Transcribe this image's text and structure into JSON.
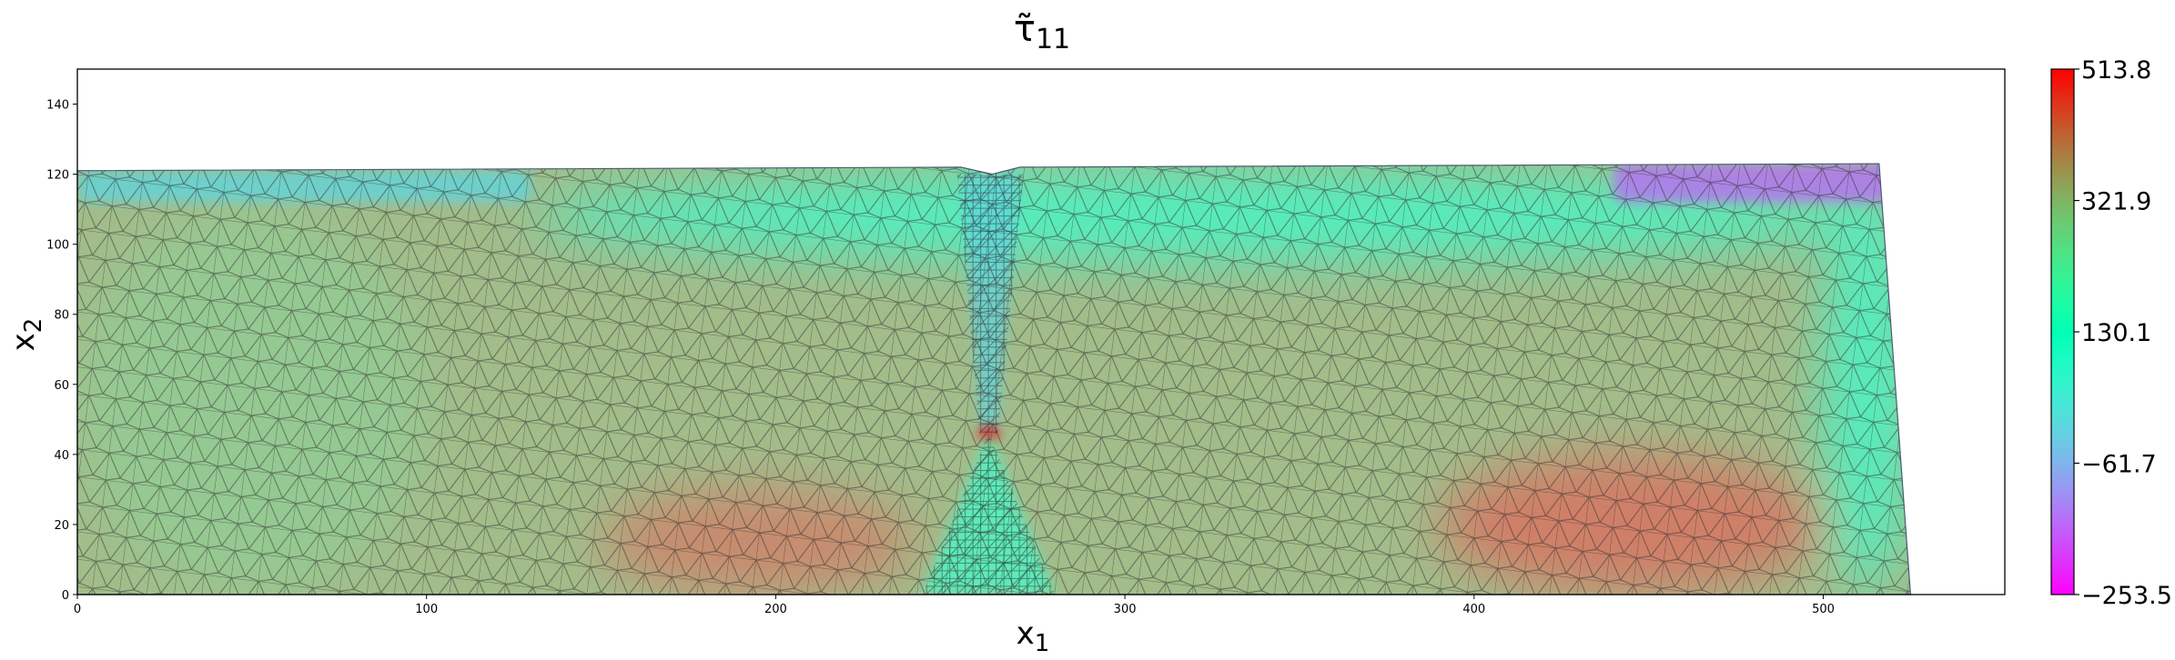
{
  "chart_data": {
    "type": "heatmap",
    "title": "τ̃",
    "title_sub": "11",
    "xlabel": "x",
    "xlabel_sub": "1",
    "ylabel": "x",
    "ylabel_sub": "2",
    "xlim": [
      0,
      552
    ],
    "ylim": [
      0,
      150
    ],
    "xticks": [
      0,
      100,
      200,
      300,
      400,
      500
    ],
    "yticks": [
      0,
      20,
      40,
      60,
      80,
      100,
      120,
      140
    ],
    "colorbar": {
      "colormap": "rainbow",
      "min": -253.5,
      "max": 513.8,
      "ticks": [
        -253.5,
        -61.7,
        130.1,
        321.9,
        513.8
      ],
      "tick_labels": [
        "−253.5",
        "−61.7",
        "130.1",
        "321.9",
        "513.8"
      ]
    },
    "domain_outline": [
      [
        0,
        0
      ],
      [
        525,
        0
      ],
      [
        516,
        123
      ],
      [
        270,
        122
      ],
      [
        262,
        120
      ],
      [
        253,
        122
      ],
      [
        0,
        121
      ]
    ],
    "crack": {
      "x_center": 261,
      "tip_y": 46,
      "top_y": 120
    },
    "field_regions": [
      {
        "region": "left top strip",
        "x": [
          0,
          130
        ],
        "y": [
          112,
          121
        ],
        "value": -10
      },
      {
        "region": "left bulk",
        "x": [
          0,
          100
        ],
        "y": [
          0,
          110
        ],
        "value": 300
      },
      {
        "region": "lower left hot zone",
        "x": [
          150,
          240
        ],
        "y": [
          0,
          30
        ],
        "value": 420
      },
      {
        "region": "crack notch",
        "x": [
          253,
          270
        ],
        "y": [
          46,
          120
        ],
        "value": -10
      },
      {
        "region": "crack tip",
        "x": [
          259,
          263
        ],
        "y": [
          45,
          48
        ],
        "value": 513.8
      },
      {
        "region": "below crack fan",
        "x": [
          242,
          280
        ],
        "y": [
          0,
          40
        ],
        "value": 150
      },
      {
        "region": "upper middle band",
        "x": [
          130,
          520
        ],
        "y": [
          95,
          121
        ],
        "value": 140
      },
      {
        "region": "right top blue pocket",
        "x": [
          440,
          520
        ],
        "y": [
          112,
          123
        ],
        "value": -150
      },
      {
        "region": "right edge",
        "x": [
          500,
          525
        ],
        "y": [
          0,
          120
        ],
        "value": 140
      },
      {
        "region": "lower right hot zone",
        "x": [
          390,
          500
        ],
        "y": [
          0,
          40
        ],
        "value": 440
      }
    ],
    "mesh": "triangular finite-element mesh, refined near the crack",
    "grid": false
  }
}
